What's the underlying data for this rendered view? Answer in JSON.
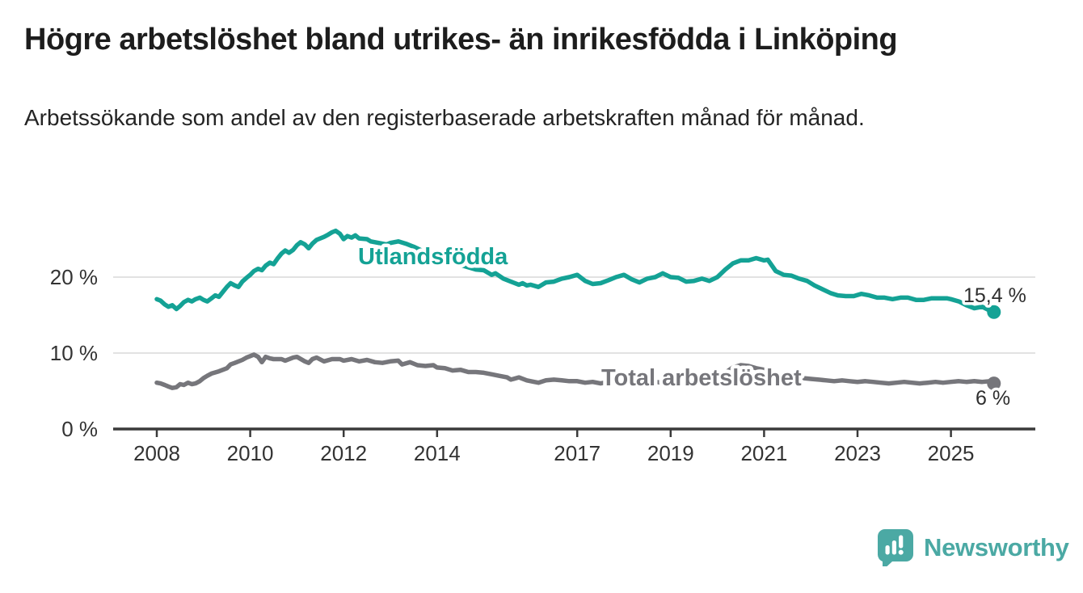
{
  "header": {
    "title": "Högre arbetslöshet bland utrikes- än inrikesfödda i Linköping",
    "subtitle": "Arbetssökande som andel av den registerbaserade arbetskraften månad för månad."
  },
  "footer": {
    "brand": "Newsworthy",
    "logo_icon": "bar-chart-speech-bubble-icon"
  },
  "colors": {
    "accent_teal": "#14a295",
    "series_gray": "#76767b",
    "grid": "#d9d9d9",
    "axis": "#3a3a3a",
    "tick_text": "#333333",
    "annotation_text": "#2e2e2e",
    "logo_teal": "#4ba9a4",
    "background": "#ffffff"
  },
  "chart_data": {
    "type": "line",
    "title": "Högre arbetslöshet bland utrikes- än inrikesfödda i Linköping",
    "subtitle": "Arbetssökande som andel av den registerbaserade arbetskraften månad för månad.",
    "unit": "percent",
    "grid": "horizontal-only",
    "legend_position": "inline-labels-on-lines",
    "x_axis": {
      "label": "",
      "tick_labels": [
        "2008",
        "2010",
        "2012",
        "2014",
        "2017",
        "2019",
        "2021",
        "2023",
        "2025"
      ],
      "tick_years": [
        2008,
        2010,
        2012,
        2014,
        2017,
        2019,
        2021,
        2023,
        2025
      ],
      "range_years": [
        2007.1,
        2026.8
      ]
    },
    "y_axis": {
      "label": "",
      "ticks": [
        {
          "value": 0,
          "label": "0 %"
        },
        {
          "value": 10,
          "label": "10 %"
        },
        {
          "value": 20,
          "label": "20 %"
        }
      ],
      "range": [
        0,
        27.5
      ]
    },
    "series": [
      {
        "name": "Utlandsfödda",
        "color": "#14a295",
        "end_label": "15,4 %",
        "end_value": 15.4,
        "points": [
          [
            2008.0,
            17.1
          ],
          [
            2008.08,
            16.9
          ],
          [
            2008.17,
            16.4
          ],
          [
            2008.25,
            16.1
          ],
          [
            2008.33,
            16.3
          ],
          [
            2008.42,
            15.8
          ],
          [
            2008.5,
            16.2
          ],
          [
            2008.58,
            16.7
          ],
          [
            2008.67,
            17.0
          ],
          [
            2008.75,
            16.8
          ],
          [
            2008.83,
            17.1
          ],
          [
            2008.92,
            17.3
          ],
          [
            2009.0,
            17.0
          ],
          [
            2009.08,
            16.8
          ],
          [
            2009.17,
            17.2
          ],
          [
            2009.25,
            17.6
          ],
          [
            2009.33,
            17.4
          ],
          [
            2009.42,
            18.1
          ],
          [
            2009.5,
            18.7
          ],
          [
            2009.58,
            19.2
          ],
          [
            2009.67,
            18.9
          ],
          [
            2009.75,
            18.7
          ],
          [
            2009.83,
            19.4
          ],
          [
            2009.92,
            19.9
          ],
          [
            2010.0,
            20.3
          ],
          [
            2010.08,
            20.8
          ],
          [
            2010.17,
            21.1
          ],
          [
            2010.25,
            20.9
          ],
          [
            2010.33,
            21.5
          ],
          [
            2010.42,
            21.9
          ],
          [
            2010.5,
            21.7
          ],
          [
            2010.58,
            22.4
          ],
          [
            2010.67,
            23.1
          ],
          [
            2010.75,
            23.5
          ],
          [
            2010.83,
            23.2
          ],
          [
            2010.92,
            23.6
          ],
          [
            2011.0,
            24.2
          ],
          [
            2011.08,
            24.6
          ],
          [
            2011.17,
            24.3
          ],
          [
            2011.25,
            23.8
          ],
          [
            2011.33,
            24.4
          ],
          [
            2011.42,
            24.9
          ],
          [
            2011.5,
            25.1
          ],
          [
            2011.58,
            25.3
          ],
          [
            2011.67,
            25.6
          ],
          [
            2011.75,
            25.9
          ],
          [
            2011.83,
            26.1
          ],
          [
            2011.92,
            25.7
          ],
          [
            2012.0,
            25.0
          ],
          [
            2012.08,
            25.4
          ],
          [
            2012.17,
            25.2
          ],
          [
            2012.25,
            25.5
          ],
          [
            2012.33,
            25.1
          ],
          [
            2012.5,
            25.0
          ],
          [
            2012.58,
            24.7
          ],
          [
            2012.75,
            24.5
          ],
          [
            2012.92,
            24.3
          ],
          [
            2013.0,
            24.5
          ],
          [
            2013.17,
            24.7
          ],
          [
            2013.33,
            24.4
          ],
          [
            2013.5,
            24.0
          ],
          [
            2013.67,
            23.5
          ],
          [
            2013.83,
            23.1
          ],
          [
            2014.0,
            22.7
          ],
          [
            2014.17,
            22.3
          ],
          [
            2014.33,
            21.9
          ],
          [
            2014.5,
            21.6
          ],
          [
            2014.67,
            21.3
          ],
          [
            2014.83,
            21.0
          ],
          [
            2015.0,
            20.9
          ],
          [
            2015.17,
            20.3
          ],
          [
            2015.25,
            20.5
          ],
          [
            2015.42,
            19.8
          ],
          [
            2015.58,
            19.4
          ],
          [
            2015.75,
            19.0
          ],
          [
            2015.83,
            19.2
          ],
          [
            2015.92,
            18.9
          ],
          [
            2016.0,
            19.0
          ],
          [
            2016.17,
            18.7
          ],
          [
            2016.33,
            19.3
          ],
          [
            2016.5,
            19.4
          ],
          [
            2016.67,
            19.8
          ],
          [
            2016.83,
            20.0
          ],
          [
            2017.0,
            20.3
          ],
          [
            2017.17,
            19.5
          ],
          [
            2017.33,
            19.1
          ],
          [
            2017.5,
            19.2
          ],
          [
            2017.67,
            19.6
          ],
          [
            2017.83,
            20.0
          ],
          [
            2018.0,
            20.3
          ],
          [
            2018.17,
            19.7
          ],
          [
            2018.33,
            19.3
          ],
          [
            2018.5,
            19.8
          ],
          [
            2018.67,
            20.0
          ],
          [
            2018.83,
            20.5
          ],
          [
            2019.0,
            20.0
          ],
          [
            2019.17,
            19.9
          ],
          [
            2019.33,
            19.4
          ],
          [
            2019.5,
            19.5
          ],
          [
            2019.67,
            19.8
          ],
          [
            2019.83,
            19.5
          ],
          [
            2020.0,
            20.0
          ],
          [
            2020.17,
            21.0
          ],
          [
            2020.33,
            21.8
          ],
          [
            2020.5,
            22.2
          ],
          [
            2020.67,
            22.2
          ],
          [
            2020.83,
            22.5
          ],
          [
            2021.0,
            22.2
          ],
          [
            2021.08,
            22.3
          ],
          [
            2021.25,
            20.8
          ],
          [
            2021.42,
            20.3
          ],
          [
            2021.58,
            20.2
          ],
          [
            2021.75,
            19.8
          ],
          [
            2021.92,
            19.5
          ],
          [
            2022.08,
            18.9
          ],
          [
            2022.25,
            18.4
          ],
          [
            2022.42,
            17.9
          ],
          [
            2022.58,
            17.6
          ],
          [
            2022.75,
            17.5
          ],
          [
            2022.92,
            17.5
          ],
          [
            2023.08,
            17.8
          ],
          [
            2023.25,
            17.6
          ],
          [
            2023.42,
            17.3
          ],
          [
            2023.58,
            17.3
          ],
          [
            2023.75,
            17.1
          ],
          [
            2023.92,
            17.3
          ],
          [
            2024.08,
            17.3
          ],
          [
            2024.25,
            17.0
          ],
          [
            2024.42,
            17.0
          ],
          [
            2024.58,
            17.2
          ],
          [
            2024.75,
            17.2
          ],
          [
            2024.92,
            17.2
          ],
          [
            2025.0,
            17.1
          ],
          [
            2025.17,
            16.8
          ],
          [
            2025.33,
            16.3
          ],
          [
            2025.5,
            15.9
          ],
          [
            2025.67,
            16.1
          ],
          [
            2025.83,
            15.6
          ],
          [
            2025.92,
            15.4
          ]
        ]
      },
      {
        "name": "Total arbetslöshet",
        "color": "#76767b",
        "end_label": "6 %",
        "end_value": 6.0,
        "points": [
          [
            2008.0,
            6.1
          ],
          [
            2008.08,
            6.0
          ],
          [
            2008.17,
            5.8
          ],
          [
            2008.25,
            5.6
          ],
          [
            2008.33,
            5.4
          ],
          [
            2008.42,
            5.5
          ],
          [
            2008.5,
            5.9
          ],
          [
            2008.58,
            5.8
          ],
          [
            2008.67,
            6.1
          ],
          [
            2008.75,
            5.9
          ],
          [
            2008.83,
            6.0
          ],
          [
            2008.92,
            6.3
          ],
          [
            2009.0,
            6.7
          ],
          [
            2009.08,
            7.0
          ],
          [
            2009.17,
            7.3
          ],
          [
            2009.33,
            7.6
          ],
          [
            2009.5,
            8.0
          ],
          [
            2009.58,
            8.5
          ],
          [
            2009.67,
            8.7
          ],
          [
            2009.83,
            9.1
          ],
          [
            2009.92,
            9.4
          ],
          [
            2010.0,
            9.6
          ],
          [
            2010.08,
            9.8
          ],
          [
            2010.17,
            9.5
          ],
          [
            2010.25,
            8.8
          ],
          [
            2010.33,
            9.5
          ],
          [
            2010.42,
            9.3
          ],
          [
            2010.5,
            9.2
          ],
          [
            2010.67,
            9.2
          ],
          [
            2010.75,
            9.0
          ],
          [
            2010.92,
            9.4
          ],
          [
            2011.0,
            9.5
          ],
          [
            2011.17,
            8.9
          ],
          [
            2011.25,
            8.7
          ],
          [
            2011.33,
            9.2
          ],
          [
            2011.42,
            9.4
          ],
          [
            2011.58,
            8.9
          ],
          [
            2011.75,
            9.2
          ],
          [
            2011.92,
            9.2
          ],
          [
            2012.0,
            9.0
          ],
          [
            2012.17,
            9.2
          ],
          [
            2012.33,
            8.9
          ],
          [
            2012.5,
            9.1
          ],
          [
            2012.67,
            8.8
          ],
          [
            2012.83,
            8.7
          ],
          [
            2013.0,
            8.9
          ],
          [
            2013.17,
            9.0
          ],
          [
            2013.25,
            8.5
          ],
          [
            2013.42,
            8.8
          ],
          [
            2013.58,
            8.4
          ],
          [
            2013.75,
            8.3
          ],
          [
            2013.92,
            8.4
          ],
          [
            2014.0,
            8.1
          ],
          [
            2014.17,
            8.0
          ],
          [
            2014.33,
            7.7
          ],
          [
            2014.5,
            7.8
          ],
          [
            2014.67,
            7.5
          ],
          [
            2014.83,
            7.5
          ],
          [
            2015.0,
            7.4
          ],
          [
            2015.17,
            7.2
          ],
          [
            2015.33,
            7.0
          ],
          [
            2015.5,
            6.8
          ],
          [
            2015.58,
            6.5
          ],
          [
            2015.75,
            6.8
          ],
          [
            2015.92,
            6.4
          ],
          [
            2016.08,
            6.2
          ],
          [
            2016.17,
            6.1
          ],
          [
            2016.33,
            6.4
          ],
          [
            2016.5,
            6.5
          ],
          [
            2016.67,
            6.4
          ],
          [
            2016.83,
            6.3
          ],
          [
            2017.0,
            6.3
          ],
          [
            2017.17,
            6.1
          ],
          [
            2017.33,
            6.2
          ],
          [
            2017.5,
            6.0
          ],
          [
            2017.67,
            6.2
          ],
          [
            2017.83,
            6.3
          ],
          [
            2018.0,
            6.2
          ],
          [
            2018.17,
            6.0
          ],
          [
            2018.33,
            5.9
          ],
          [
            2018.5,
            6.1
          ],
          [
            2018.67,
            6.2
          ],
          [
            2018.83,
            6.1
          ],
          [
            2019.0,
            6.0
          ],
          [
            2019.17,
            5.9
          ],
          [
            2019.33,
            6.0
          ],
          [
            2019.5,
            6.1
          ],
          [
            2019.67,
            6.2
          ],
          [
            2019.83,
            6.3
          ],
          [
            2020.0,
            6.6
          ],
          [
            2020.17,
            7.4
          ],
          [
            2020.33,
            8.1
          ],
          [
            2020.5,
            8.4
          ],
          [
            2020.67,
            8.3
          ],
          [
            2020.83,
            8.0
          ],
          [
            2021.0,
            7.8
          ],
          [
            2021.17,
            7.5
          ],
          [
            2021.33,
            7.2
          ],
          [
            2021.5,
            7.0
          ],
          [
            2021.67,
            6.8
          ],
          [
            2021.83,
            6.7
          ],
          [
            2022.0,
            6.6
          ],
          [
            2022.17,
            6.5
          ],
          [
            2022.33,
            6.4
          ],
          [
            2022.5,
            6.3
          ],
          [
            2022.67,
            6.4
          ],
          [
            2022.83,
            6.3
          ],
          [
            2023.0,
            6.2
          ],
          [
            2023.17,
            6.3
          ],
          [
            2023.33,
            6.2
          ],
          [
            2023.5,
            6.1
          ],
          [
            2023.67,
            6.0
          ],
          [
            2023.83,
            6.1
          ],
          [
            2024.0,
            6.2
          ],
          [
            2024.17,
            6.1
          ],
          [
            2024.33,
            6.0
          ],
          [
            2024.5,
            6.1
          ],
          [
            2024.67,
            6.2
          ],
          [
            2024.83,
            6.1
          ],
          [
            2025.0,
            6.2
          ],
          [
            2025.17,
            6.3
          ],
          [
            2025.33,
            6.2
          ],
          [
            2025.5,
            6.3
          ],
          [
            2025.67,
            6.2
          ],
          [
            2025.83,
            6.3
          ],
          [
            2025.92,
            6.0
          ]
        ]
      }
    ]
  }
}
